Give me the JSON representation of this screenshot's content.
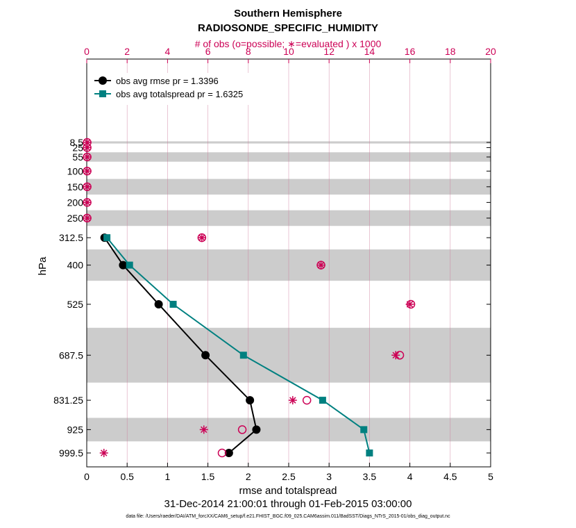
{
  "chart_data": {
    "type": "line",
    "title": "Southern Hemisphere",
    "subtitle": "RADIOSONDE_SPECIFIC_HUMIDITY",
    "top_axis_label": "# of obs (o=possible; ∗=evaluated ) x 1000",
    "xlabel": "rmse and totalspread",
    "ylabel": "hPa",
    "xlim": [
      0,
      5
    ],
    "x_ticks": [
      "0",
      "0.5",
      "1",
      "1.5",
      "2",
      "2.5",
      "3",
      "3.5",
      "4",
      "4.5",
      "5"
    ],
    "top_xlim": [
      0,
      20
    ],
    "top_ticks": [
      "0",
      "2",
      "4",
      "6",
      "8",
      "10",
      "12",
      "14",
      "16",
      "18",
      "20"
    ],
    "levels": [
      8.5,
      25,
      55,
      100,
      150,
      200,
      250,
      312.5,
      400,
      525,
      687.5,
      831.25,
      925,
      999.5
    ],
    "level_labels": [
      "8.5",
      "25",
      "55",
      "100",
      "150",
      "200",
      "250",
      "312.5",
      "400",
      "525",
      "687.5",
      "831.25",
      "925",
      "999.5"
    ],
    "gray_bands_hpa": [
      [
        5,
        12
      ],
      [
        40,
        70
      ],
      [
        125,
        175
      ],
      [
        225,
        275
      ],
      [
        350,
        450
      ],
      [
        600,
        775
      ],
      [
        887.5,
        962.5
      ]
    ],
    "series": [
      {
        "name": "obs avg rmse pr = 1.3396",
        "color": "#000000",
        "marker": "circle",
        "levels": [
          312.5,
          400,
          525,
          687.5,
          831.25,
          925,
          999.5
        ],
        "values": [
          0.22,
          0.45,
          0.89,
          1.47,
          2.02,
          2.1,
          1.76
        ]
      },
      {
        "name": "obs avg totalspread pr = 1.6325",
        "color": "#008080",
        "marker": "square",
        "levels": [
          312.5,
          400,
          525,
          687.5,
          831.25,
          925,
          999.5
        ],
        "values": [
          0.25,
          0.53,
          1.07,
          1.94,
          2.92,
          3.43,
          3.5
        ]
      }
    ],
    "obs_counts": {
      "color": "#cc0055",
      "levels": [
        8.5,
        25,
        55,
        100,
        150,
        200,
        250,
        312.5,
        400,
        525,
        687.5,
        831.25,
        925,
        999.5
      ],
      "possible": [
        0.02,
        0.02,
        0.02,
        0.02,
        0.02,
        0.02,
        0.02,
        5.7,
        11.6,
        16.05,
        15.5,
        10.9,
        7.7,
        6.7
      ],
      "evaluated": [
        0.02,
        0.02,
        0.02,
        0.02,
        0.02,
        0.02,
        0.02,
        5.7,
        11.6,
        16.0,
        15.3,
        10.2,
        5.8,
        0.85
      ]
    },
    "date_range": "31-Dec-2014 21:00:01 through 01-Feb-2015 03:00:00",
    "data_file": "data file: /Users/raeder/DAI/ATM_forcXX/CAM6_setup/f.e21.FHIST_BGC.f09_025.CAM6assim.011/BadSST/Diags_NTrS_2015-01/obs_diag_output.nc"
  }
}
